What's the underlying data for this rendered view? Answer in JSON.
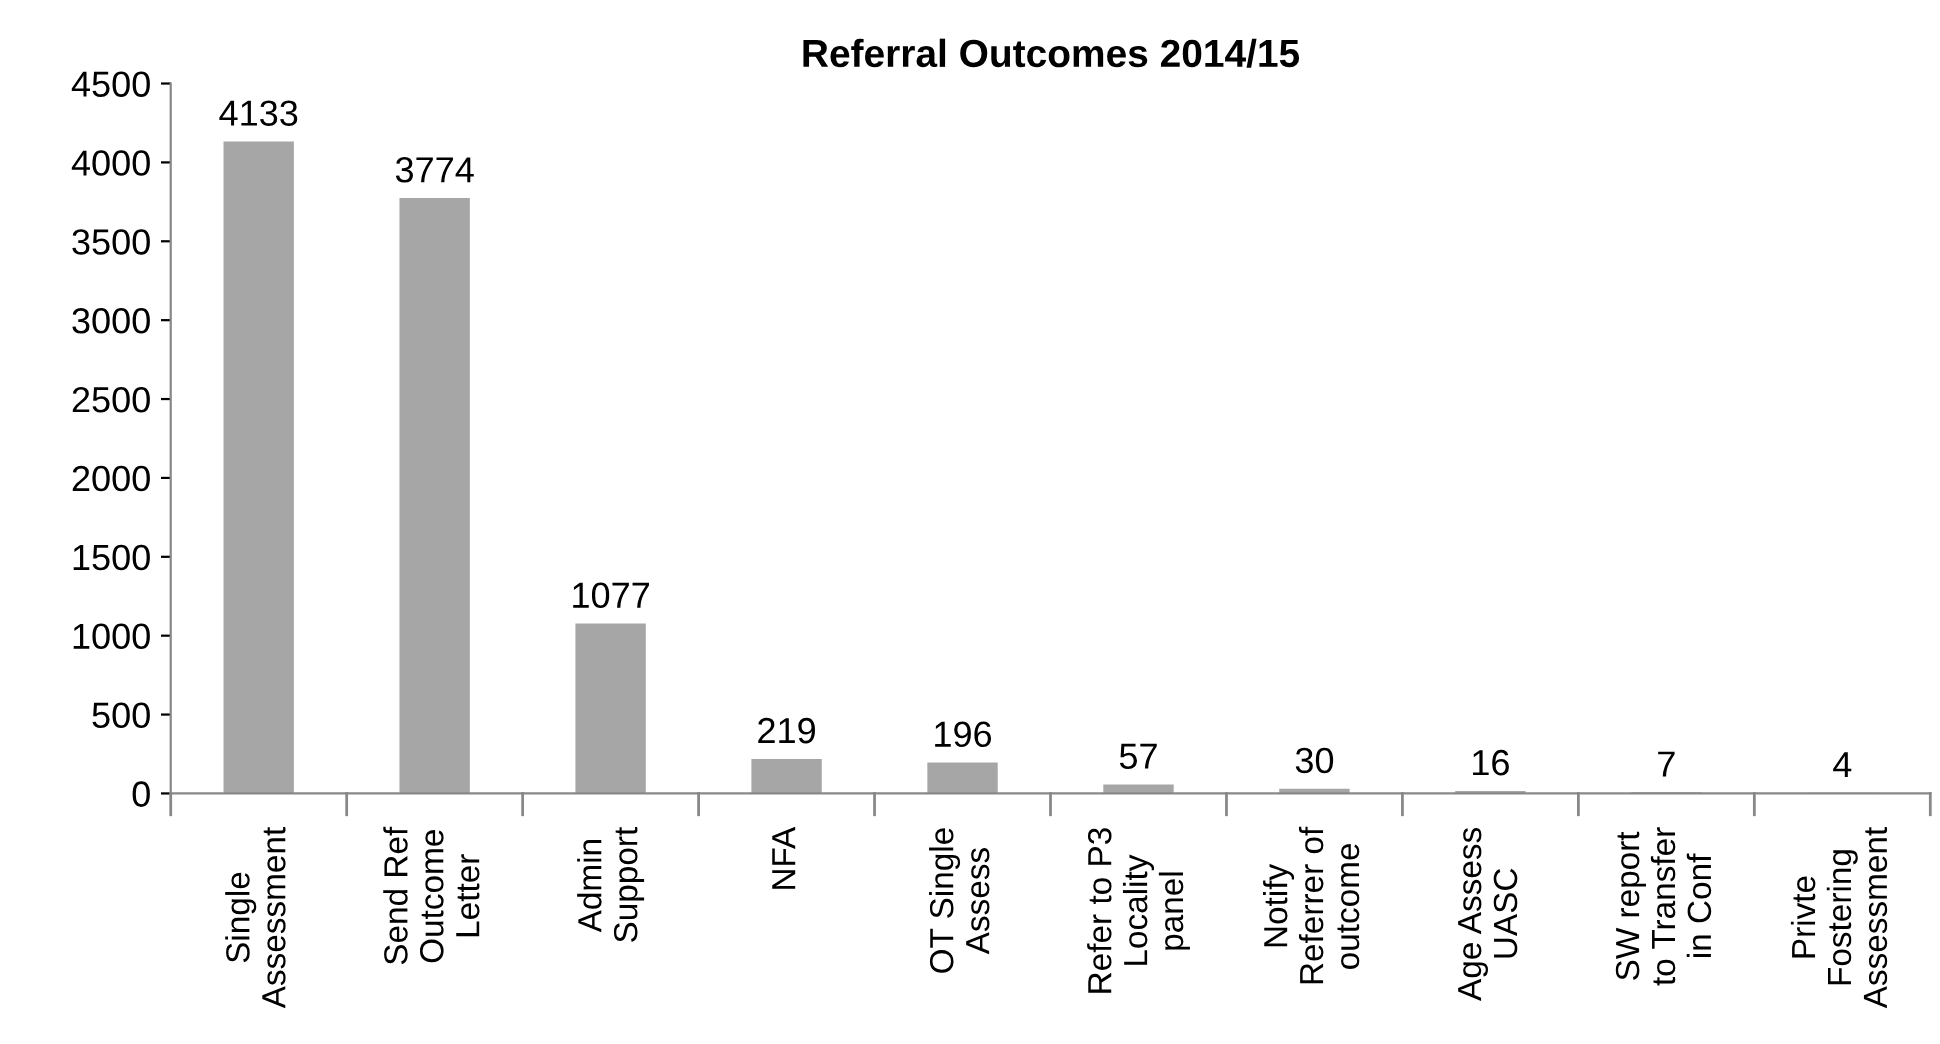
{
  "chart_data": {
    "type": "bar",
    "title": "Referral Outcomes 2014/15",
    "categories": [
      "Single\nAssessment",
      "Send Ref\nOutcome\nLetter",
      "Admin\nSupport",
      "NFA",
      "OT Single\nAssess",
      "Refer to P3\nLocality\npanel",
      "Notify\nReferrer of\noutcome",
      "Age Assess\nUASC",
      "SW report\nto Transfer\nin Conf",
      "Privte\nFostering\nAssessment"
    ],
    "values": [
      4133,
      3774,
      1077,
      219,
      196,
      57,
      30,
      16,
      7,
      4
    ],
    "color": "#a6a6a6",
    "ylim": [
      0,
      4500
    ],
    "yticks": [
      0,
      500,
      1000,
      1500,
      2000,
      2500,
      3000,
      3500,
      4000,
      4500
    ],
    "data_labels": true,
    "grid": false,
    "legend": false
  }
}
